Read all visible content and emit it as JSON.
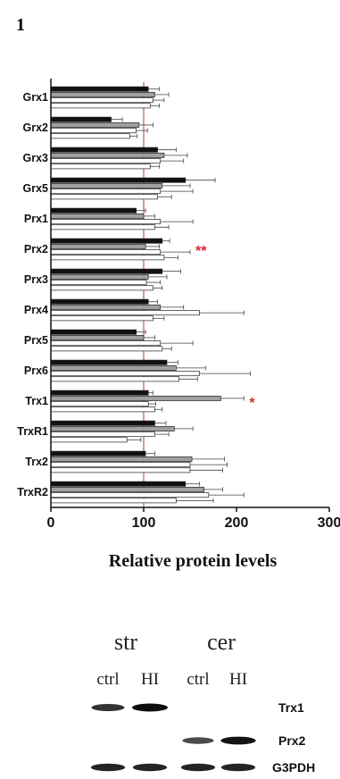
{
  "panel_label": "1",
  "chart_data": {
    "type": "bar",
    "orientation": "horizontal",
    "categories": [
      "Grx1",
      "Grx2",
      "Grx3",
      "Grx5",
      "Prx1",
      "Prx2",
      "Prx3",
      "Prx4",
      "Prx5",
      "Prx6",
      "Trx1",
      "TrxR1",
      "Trx2",
      "TrxR2"
    ],
    "series": [
      {
        "color": "#111111",
        "values": [
          105,
          65,
          115,
          145,
          92,
          120,
          120,
          105,
          92,
          125,
          105,
          112,
          102,
          145
        ],
        "errors": [
          12,
          12,
          20,
          32,
          10,
          8,
          20,
          10,
          10,
          12,
          5,
          12,
          10,
          15
        ]
      },
      {
        "color": "#a0a0a0",
        "values": [
          112,
          95,
          122,
          120,
          100,
          102,
          105,
          118,
          100,
          135,
          183,
          133,
          152,
          165
        ],
        "errors": [
          15,
          15,
          25,
          30,
          12,
          15,
          20,
          25,
          12,
          32,
          25,
          20,
          35,
          20
        ]
      },
      {
        "color": "#ffffff",
        "values": [
          110,
          92,
          118,
          118,
          118,
          118,
          103,
          160,
          118,
          160,
          105,
          112,
          150,
          170
        ],
        "errors": [
          12,
          12,
          25,
          35,
          35,
          32,
          15,
          48,
          35,
          55,
          8,
          15,
          40,
          38
        ]
      },
      {
        "color": "#ffffff",
        "values": [
          107,
          85,
          107,
          115,
          112,
          122,
          110,
          110,
          120,
          138,
          112,
          82,
          150,
          135
        ],
        "errors": [
          10,
          8,
          10,
          15,
          15,
          15,
          10,
          12,
          10,
          20,
          8,
          15,
          35,
          40
        ]
      }
    ],
    "reference_line": 100,
    "xlim": [
      0,
      300
    ],
    "xticks": [
      0,
      100,
      200,
      300
    ],
    "xlabel": "Relative protein levels",
    "significance": [
      {
        "category": "Prx2",
        "mark": "**"
      },
      {
        "category": "Trx1",
        "mark": "*"
      }
    ]
  },
  "blot": {
    "regions": [
      "str",
      "cer"
    ],
    "lanes": [
      "ctrl",
      "HI",
      "ctrl",
      "HI"
    ],
    "proteins": [
      "Trx1",
      "Prx2",
      "G3PDH"
    ],
    "band_intensity": [
      [
        0.75,
        1.0,
        0.0,
        0.0
      ],
      [
        0.0,
        0.0,
        0.6,
        0.95
      ],
      [
        0.85,
        0.85,
        0.85,
        0.85
      ]
    ]
  }
}
